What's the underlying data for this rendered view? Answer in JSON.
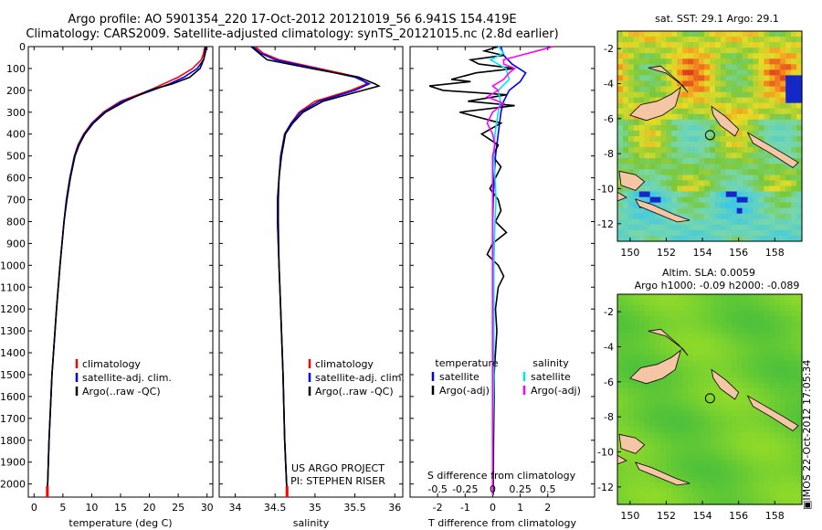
{
  "header": {
    "title_line1": "Argo profile: AO 5901354_220 17-Oct-2012 20121019_56 6.941S 154.419E",
    "title_line2": "Climatology: CARS2009. Satellite-adjusted climatology: synTS_20121015.nc (2.8d earlier)"
  },
  "footer": {
    "watermark": "IMOS 22-Oct-2012 17:05:34"
  },
  "colors": {
    "climatology": "#ff0000",
    "satellite": "#0000ff",
    "argo": "#000000",
    "sal_satellite": "#00e5ee",
    "sal_argo": "#ff00ff",
    "land": "#f5c6a5"
  },
  "chart_data": [
    {
      "type": "line",
      "xlabel": "temperature (deg C)",
      "ylabel": "",
      "xlim": [
        -1,
        31
      ],
      "ylim": [
        2060,
        0
      ],
      "xticks": [
        0,
        5,
        10,
        15,
        20,
        25,
        30
      ],
      "yticks": [
        0,
        100,
        200,
        300,
        400,
        500,
        600,
        700,
        800,
        900,
        1000,
        1100,
        1200,
        1300,
        1400,
        1500,
        1600,
        1700,
        1800,
        1900,
        2000
      ],
      "legend": [
        "climatology",
        "satellite-adj. clim.",
        "Argo(..raw -QC)"
      ],
      "legend_position": "lower-middle",
      "series": [
        {
          "name": "climatology",
          "color": "#ff0000",
          "depth": [
            0,
            30,
            60,
            100,
            140,
            170,
            200,
            250,
            300,
            350,
            400,
            450,
            500,
            600,
            700,
            800,
            1000,
            1200,
            1500,
            1800,
            2050
          ],
          "values": [
            29.6,
            29.4,
            29.0,
            27.5,
            25.0,
            22.5,
            20.0,
            15.0,
            12.0,
            10.0,
            8.6,
            7.6,
            7.0,
            6.2,
            5.6,
            5.2,
            4.5,
            3.9,
            3.1,
            2.6,
            2.3
          ]
        },
        {
          "name": "satellite-adj. clim.",
          "color": "#0000ff",
          "depth": [
            0,
            30,
            60,
            100,
            140,
            170,
            200,
            250,
            300,
            350,
            400,
            450,
            500,
            600,
            700,
            800,
            1000,
            1200,
            1500,
            1800,
            2050
          ],
          "values": [
            29.9,
            29.7,
            29.4,
            28.3,
            26.0,
            23.5,
            20.5,
            15.3,
            12.2,
            10.1,
            8.7,
            7.7,
            7.0,
            6.2,
            5.6,
            5.2,
            4.5,
            3.9,
            3.1,
            2.6,
            2.3
          ]
        },
        {
          "name": "Argo(..raw -QC)",
          "color": "#000000",
          "depth": [
            0,
            30,
            60,
            100,
            140,
            170,
            200,
            250,
            300,
            350,
            400,
            450,
            500,
            600,
            700,
            800,
            1000,
            1200,
            1500,
            1800,
            2050
          ],
          "values": [
            29.8,
            29.6,
            29.4,
            28.8,
            27.0,
            24.0,
            20.0,
            15.8,
            12.4,
            10.3,
            8.8,
            7.8,
            7.1,
            6.3,
            5.7,
            5.2,
            4.5,
            3.9,
            3.1,
            2.6,
            2.3
          ]
        }
      ]
    },
    {
      "type": "line",
      "xlabel": "salinity",
      "xlim": [
        33.8,
        36.1
      ],
      "ylim": [
        2060,
        0
      ],
      "xticks": [
        34,
        34.5,
        35,
        35.5,
        36
      ],
      "legend": [
        "climatology",
        "satellite-adj. clim.",
        "Argo(..raw -QC)"
      ],
      "legend_position": "lower-right",
      "annotations": [
        "US ARGO PROJECT",
        "PI: STEPHEN RISER"
      ],
      "series": [
        {
          "name": "climatology",
          "color": "#ff0000",
          "depth": [
            0,
            30,
            60,
            100,
            140,
            170,
            200,
            250,
            300,
            350,
            400,
            500,
            600,
            700,
            800,
            1000,
            1200,
            1500,
            1800,
            2050
          ],
          "values": [
            34.25,
            34.35,
            34.55,
            35.05,
            35.55,
            35.65,
            35.45,
            35.0,
            34.8,
            34.7,
            34.62,
            34.57,
            34.55,
            34.53,
            34.53,
            34.55,
            34.57,
            34.6,
            34.62,
            34.65
          ]
        },
        {
          "name": "satellite-adj. clim.",
          "color": "#0000ff",
          "depth": [
            0,
            30,
            60,
            100,
            140,
            170,
            200,
            250,
            300,
            350,
            400,
            500,
            600,
            700,
            800,
            1000,
            1200,
            1500,
            1800,
            2050
          ],
          "values": [
            34.22,
            34.32,
            34.5,
            35.0,
            35.5,
            35.68,
            35.5,
            35.05,
            34.82,
            34.7,
            34.62,
            34.57,
            34.55,
            34.53,
            34.53,
            34.55,
            34.57,
            34.6,
            34.62,
            34.65
          ]
        },
        {
          "name": "Argo(..raw -QC)",
          "color": "#000000",
          "depth": [
            0,
            30,
            60,
            100,
            140,
            170,
            180,
            200,
            250,
            300,
            350,
            400,
            500,
            600,
            700,
            800,
            1000,
            1200,
            1500,
            1800,
            2050
          ],
          "values": [
            34.2,
            34.3,
            34.4,
            34.95,
            35.55,
            35.75,
            35.8,
            35.6,
            35.1,
            34.85,
            34.72,
            34.63,
            34.58,
            34.55,
            34.54,
            34.54,
            34.55,
            34.57,
            34.6,
            34.62,
            34.65
          ]
        }
      ]
    },
    {
      "type": "line",
      "xlabel": "T difference from climatology",
      "xlabel_top": "S difference from climatology",
      "xlim": [
        -3,
        3.7
      ],
      "ylim": [
        2060,
        0
      ],
      "xticks": [
        -2,
        -1,
        0,
        1,
        2
      ],
      "xticks_top": [
        -0.5,
        -0.25,
        0,
        0.25,
        0.5
      ],
      "legend_titles": [
        "temperature",
        "salinity"
      ],
      "legend": [
        "satellite",
        "Argo(-adj)",
        "satellite",
        "Argo(-adj)"
      ],
      "series": [
        {
          "name": "satellite",
          "color": "#0000ff",
          "group": "temperature",
          "depth": [
            0,
            40,
            80,
            120,
            160,
            200,
            250,
            300,
            400,
            500,
            600,
            700,
            800,
            1000,
            1200,
            1500,
            1800,
            2050
          ],
          "values": [
            0.3,
            0.4,
            0.7,
            1.2,
            1.0,
            0.6,
            0.4,
            0.3,
            0.2,
            0.1,
            0.05,
            0.02,
            0,
            0,
            0,
            0,
            0,
            0
          ]
        },
        {
          "name": "Argo(-adj)",
          "color": "#000000",
          "group": "temperature",
          "depth": [
            0,
            20,
            40,
            60,
            80,
            100,
            120,
            150,
            160,
            180,
            200,
            220,
            250,
            270,
            300,
            350,
            400,
            450,
            500,
            550,
            600,
            650,
            700,
            750,
            800,
            850,
            900,
            950,
            1000,
            1050,
            1100,
            1200,
            1300,
            1400,
            1500,
            1600,
            1800,
            2050
          ],
          "values": [
            0.2,
            -0.3,
            0.4,
            -0.8,
            -0.5,
            0.8,
            -0.6,
            -1.5,
            -0.8,
            -2.3,
            -1.8,
            0.5,
            -0.9,
            0.8,
            -1.2,
            0.3,
            -0.4,
            0.2,
            0.0,
            0.3,
            0.1,
            -0.1,
            0.2,
            0.3,
            0.1,
            0.5,
            0.0,
            -0.2,
            0.2,
            0.4,
            0.2,
            0.1,
            0.15,
            0.1,
            0.05,
            0.05,
            0.03,
            0.02
          ]
        },
        {
          "name": "satellite",
          "color": "#00e5ee",
          "group": "salinity",
          "depth": [
            0,
            30,
            60,
            100,
            150,
            200,
            250,
            300,
            400,
            500,
            600,
            700,
            800,
            1000,
            1200,
            1500,
            1800,
            2050
          ],
          "values": [
            0.05,
            0.1,
            -0.02,
            0.12,
            0.15,
            0.05,
            0.07,
            0.05,
            0.02,
            0.01,
            0.02,
            0.03,
            0.02,
            0.01,
            0.01,
            0.01,
            0.0,
            0.0
          ]
        },
        {
          "name": "Argo(-adj)",
          "color": "#ff00ff",
          "group": "salinity",
          "depth": [
            0,
            20,
            40,
            60,
            80,
            100,
            120,
            150,
            180,
            200,
            230,
            260,
            300,
            350,
            400,
            450,
            500,
            600,
            800,
            1000,
            1500,
            2050
          ],
          "values": [
            0.55,
            0.4,
            0.25,
            0.1,
            0.1,
            0.2,
            0.15,
            0.1,
            0.0,
            0.05,
            -0.05,
            0.1,
            0.0,
            -0.05,
            0.0,
            0.02,
            0.0,
            0.0,
            0.0,
            0.0,
            0.0,
            0.0
          ]
        }
      ]
    },
    {
      "type": "heatmap",
      "title": "sat. SST: 29.1  Argo: 29.1",
      "xlim": [
        149.3,
        159.5
      ],
      "ylim": [
        -13,
        -1
      ],
      "xticks": [
        150,
        152,
        154,
        156,
        158
      ],
      "yticks": [
        -2,
        -4,
        -6,
        -8,
        -10,
        -12
      ],
      "marker": {
        "lon": 154.42,
        "lat": -6.94
      }
    },
    {
      "type": "heatmap",
      "title": "Altim. SLA: 0.0059",
      "subtitle": "Argo h1000: -0.09 h2000: -0.089",
      "xlim": [
        149.3,
        159.5
      ],
      "ylim": [
        -13,
        -1
      ],
      "xticks": [
        150,
        152,
        154,
        156,
        158
      ],
      "yticks": [
        -2,
        -4,
        -6,
        -8,
        -10,
        -12
      ],
      "marker": {
        "lon": 154.42,
        "lat": -6.94
      }
    }
  ]
}
